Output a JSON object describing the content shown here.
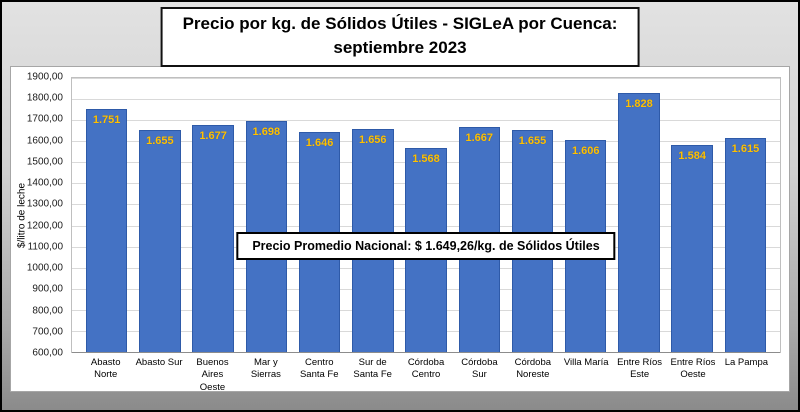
{
  "title": {
    "line1": "Precio por kg. de Sólidos Útiles - SIGLeA por Cuenca:",
    "line2": "septiembre 2023"
  },
  "chart_data": {
    "type": "bar",
    "title": "Precio por kg. de Sólidos Útiles - SIGLeA por Cuenca: septiembre 2023",
    "xlabel": "",
    "ylabel": "$/litro de leche",
    "ylim": [
      600,
      1900
    ],
    "ytick_step": 100,
    "ytick_labels": [
      "1900,00",
      "1800,00",
      "1700,00",
      "1600,00",
      "1500,00",
      "1400,00",
      "1300,00",
      "1200,00",
      "1100,00",
      "1000,00",
      "900,00",
      "800,00",
      "700,00",
      "600,00"
    ],
    "categories": [
      "Abasto Norte",
      "Abasto Sur",
      "Buenos Aires Oeste",
      "Mar y Sierras",
      "Centro Santa Fe",
      "Sur de Santa Fe",
      "Córdoba Centro",
      "Córdoba Sur",
      "Córdoba Noreste",
      "Villa María",
      "Entre Ríos Este",
      "Entre Ríos Oeste",
      "La Pampa"
    ],
    "values": [
      1751,
      1655,
      1677,
      1698,
      1646,
      1656,
      1568,
      1667,
      1655,
      1606,
      1828,
      1584,
      1615
    ],
    "value_labels": [
      "1.751",
      "1.655",
      "1.677",
      "1.698",
      "1.646",
      "1.656",
      "1.568",
      "1.667",
      "1.655",
      "1.606",
      "1.828",
      "1.584",
      "1.615"
    ],
    "bar_color": "#4472C4",
    "label_color": "#FFC000",
    "grid": true,
    "legend": "none",
    "annotation": "Precio Promedio Nacional: $ 1.649,26/kg. de Sólidos Útiles"
  }
}
